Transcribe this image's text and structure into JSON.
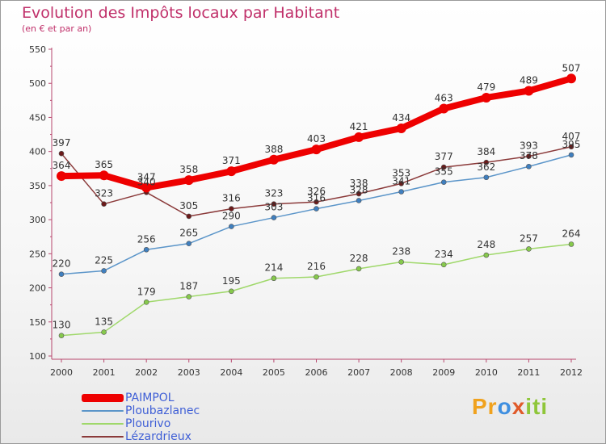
{
  "chart_data": {
    "type": "line",
    "title": "Evolution des Impôts locaux par Habitant",
    "subtitle": "(en € et par an)",
    "categories": [
      "2000",
      "2001",
      "2002",
      "2003",
      "2004",
      "2005",
      "2006",
      "2007",
      "2008",
      "2009",
      "2010",
      "2011",
      "2012"
    ],
    "ylim": [
      100,
      550
    ],
    "yticks": [
      100,
      150,
      200,
      250,
      300,
      350,
      400,
      450,
      500,
      550
    ],
    "grid": false,
    "legend_position": "bottom-left",
    "series": [
      {
        "name": "Ploubazlanec",
        "color": "#5b95c9",
        "marker": "#3f7fbf",
        "values": [
          220,
          225,
          256,
          265,
          290,
          303,
          316,
          328,
          341,
          355,
          362,
          378,
          395
        ],
        "labels": [
          "220",
          "225",
          "256",
          "265",
          "290",
          "303",
          "316",
          "328",
          "341",
          "355",
          "362",
          "378",
          "395"
        ]
      },
      {
        "name": "Plourivo",
        "color": "#9fd86a",
        "marker": "#86c94c",
        "values": [
          130,
          135,
          179,
          187,
          195,
          214,
          216,
          228,
          238,
          234,
          248,
          257,
          264
        ],
        "labels": [
          "130",
          "135",
          "179",
          "187",
          "195",
          "214",
          "216",
          "228",
          "238",
          "234",
          "248",
          "257",
          "264"
        ]
      },
      {
        "name": "Lézardrieux",
        "color": "#8b3a3a",
        "marker": "#6b1a1a",
        "values": [
          397,
          323,
          340,
          305,
          316,
          323,
          326,
          338,
          353,
          377,
          384,
          393,
          407
        ],
        "labels": [
          "397",
          "323",
          "340",
          "305",
          "316",
          "323",
          "326",
          "338",
          "353",
          "377",
          "384",
          "393",
          "407"
        ]
      },
      {
        "name": "PAIMPOL",
        "color": "#ee0000",
        "marker": "#ee0000",
        "values": [
          364,
          365,
          347,
          358,
          371,
          388,
          403,
          421,
          434,
          463,
          479,
          489,
          507
        ],
        "labels": [
          "364",
          "365",
          "347",
          "358",
          "371",
          "388",
          "403",
          "421",
          "434",
          "463",
          "479",
          "489",
          "507"
        ]
      }
    ]
  },
  "legend": {
    "items": [
      {
        "label": "PAIMPOL",
        "color": "#ee0000"
      },
      {
        "label": "Ploubazlanec",
        "color": "#5b95c9"
      },
      {
        "label": "Plourivo",
        "color": "#9fd86a"
      },
      {
        "label": "Lézardrieux",
        "color": "#8b3a3a"
      }
    ]
  },
  "brand": {
    "parts": [
      "Pr",
      "o",
      "x",
      "iti"
    ]
  }
}
